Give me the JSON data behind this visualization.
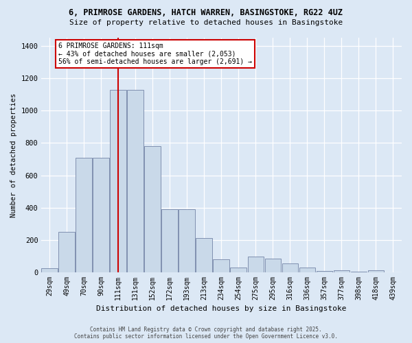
{
  "title1": "6, PRIMROSE GARDENS, HATCH WARREN, BASINGSTOKE, RG22 4UZ",
  "title2": "Size of property relative to detached houses in Basingstoke",
  "xlabel": "Distribution of detached houses by size in Basingstoke",
  "ylabel": "Number of detached properties",
  "categories": [
    "29sqm",
    "49sqm",
    "70sqm",
    "90sqm",
    "111sqm",
    "131sqm",
    "152sqm",
    "172sqm",
    "193sqm",
    "213sqm",
    "234sqm",
    "254sqm",
    "275sqm",
    "295sqm",
    "316sqm",
    "336sqm",
    "357sqm",
    "377sqm",
    "398sqm",
    "418sqm",
    "439sqm"
  ],
  "values": [
    25,
    250,
    710,
    710,
    1130,
    1130,
    780,
    390,
    390,
    215,
    80,
    30,
    100,
    85,
    55,
    30,
    10,
    15,
    5,
    12,
    3
  ],
  "bar_color": "#c9d9e9",
  "bar_edge_color": "#8090b0",
  "vline_color": "#cc0000",
  "annotation_title": "6 PRIMROSE GARDENS: 111sqm",
  "annotation_line1": "← 43% of detached houses are smaller (2,053)",
  "annotation_line2": "56% of semi-detached houses are larger (2,691) →",
  "annotation_box_color": "#ffffff",
  "annotation_border_color": "#cc0000",
  "ylim": [
    0,
    1450
  ],
  "yticks": [
    0,
    200,
    400,
    600,
    800,
    1000,
    1200,
    1400
  ],
  "bg_color": "#dce8f5",
  "footer1": "Contains HM Land Registry data © Crown copyright and database right 2025.",
  "footer2": "Contains public sector information licensed under the Open Government Licence v3.0."
}
